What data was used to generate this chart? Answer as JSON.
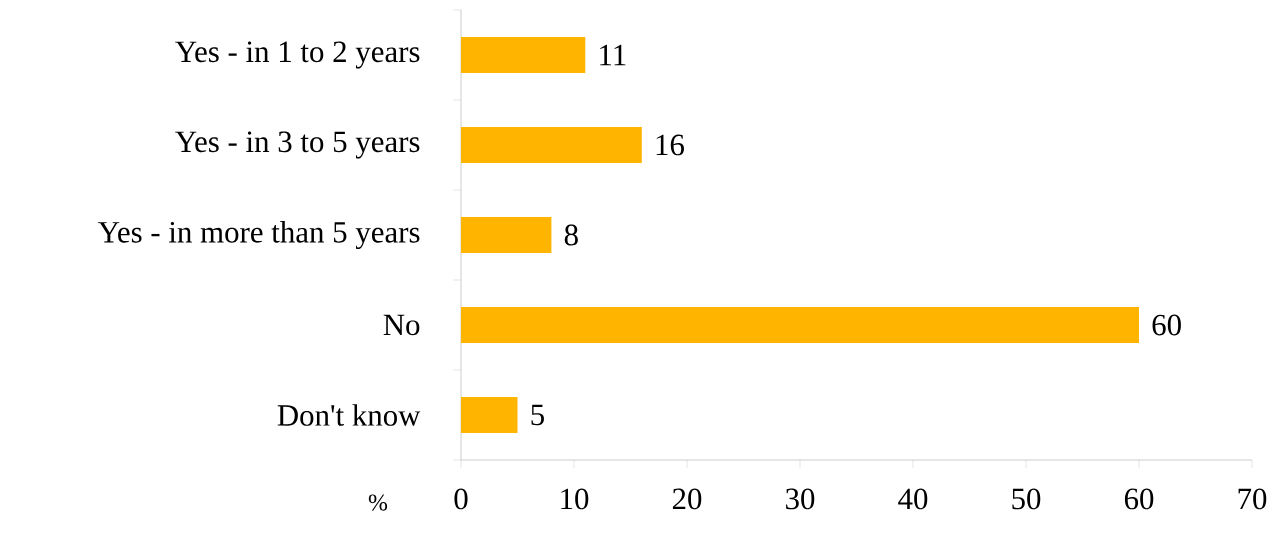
{
  "chart_data": {
    "type": "bar",
    "orientation": "horizontal",
    "xlabel": "%",
    "categories": [
      "Yes - in 1 to 2 years",
      "Yes - in 3 to 5 years",
      "Yes - in more than 5 years",
      "No",
      "Don't know"
    ],
    "values": [
      11,
      16,
      8,
      60,
      5
    ],
    "color": "#ffb400",
    "data_labels": true,
    "xlim": [
      0,
      70
    ],
    "xticks": [
      0,
      10,
      20,
      30,
      40,
      50,
      60,
      70
    ]
  }
}
